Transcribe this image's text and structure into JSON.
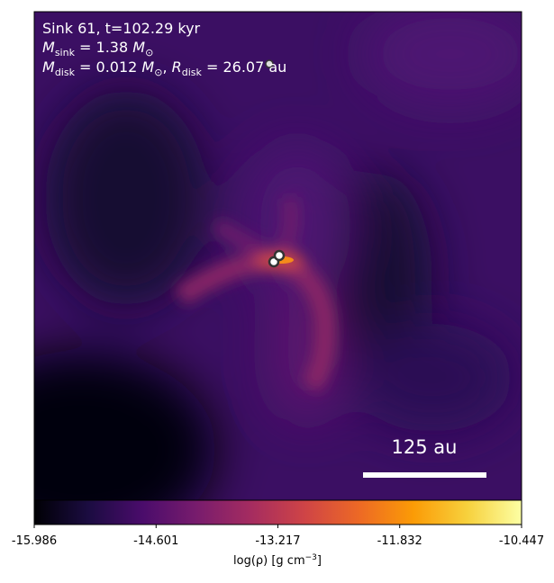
{
  "chart_data": {
    "type": "image",
    "annotations": [
      [
        "Sink 61, t=102.29 kyr"
      ],
      [
        "M",
        "sink",
        " = 1.38 ",
        "M",
        "⊙"
      ],
      [
        "M",
        "disk",
        " = 0.012 ",
        "M",
        "⊙",
        ", ",
        "R",
        "disk",
        " = 26.07 au"
      ]
    ],
    "scale_bar": "125 au",
    "colorbar": {
      "label": [
        "log(ρ) [g cm",
        "−3",
        "]"
      ],
      "lim": [
        -15.986,
        -10.447
      ],
      "ticks": [
        -15.986,
        -14.601,
        -13.217,
        -11.832,
        -10.447
      ],
      "colors": [
        "#000004",
        "#1b0c41",
        "#4a0c6b",
        "#781c6d",
        "#a52c60",
        "#cf4446",
        "#ed6925",
        "#fb9b06",
        "#f7d13d",
        "#fcffa4"
      ]
    }
  }
}
